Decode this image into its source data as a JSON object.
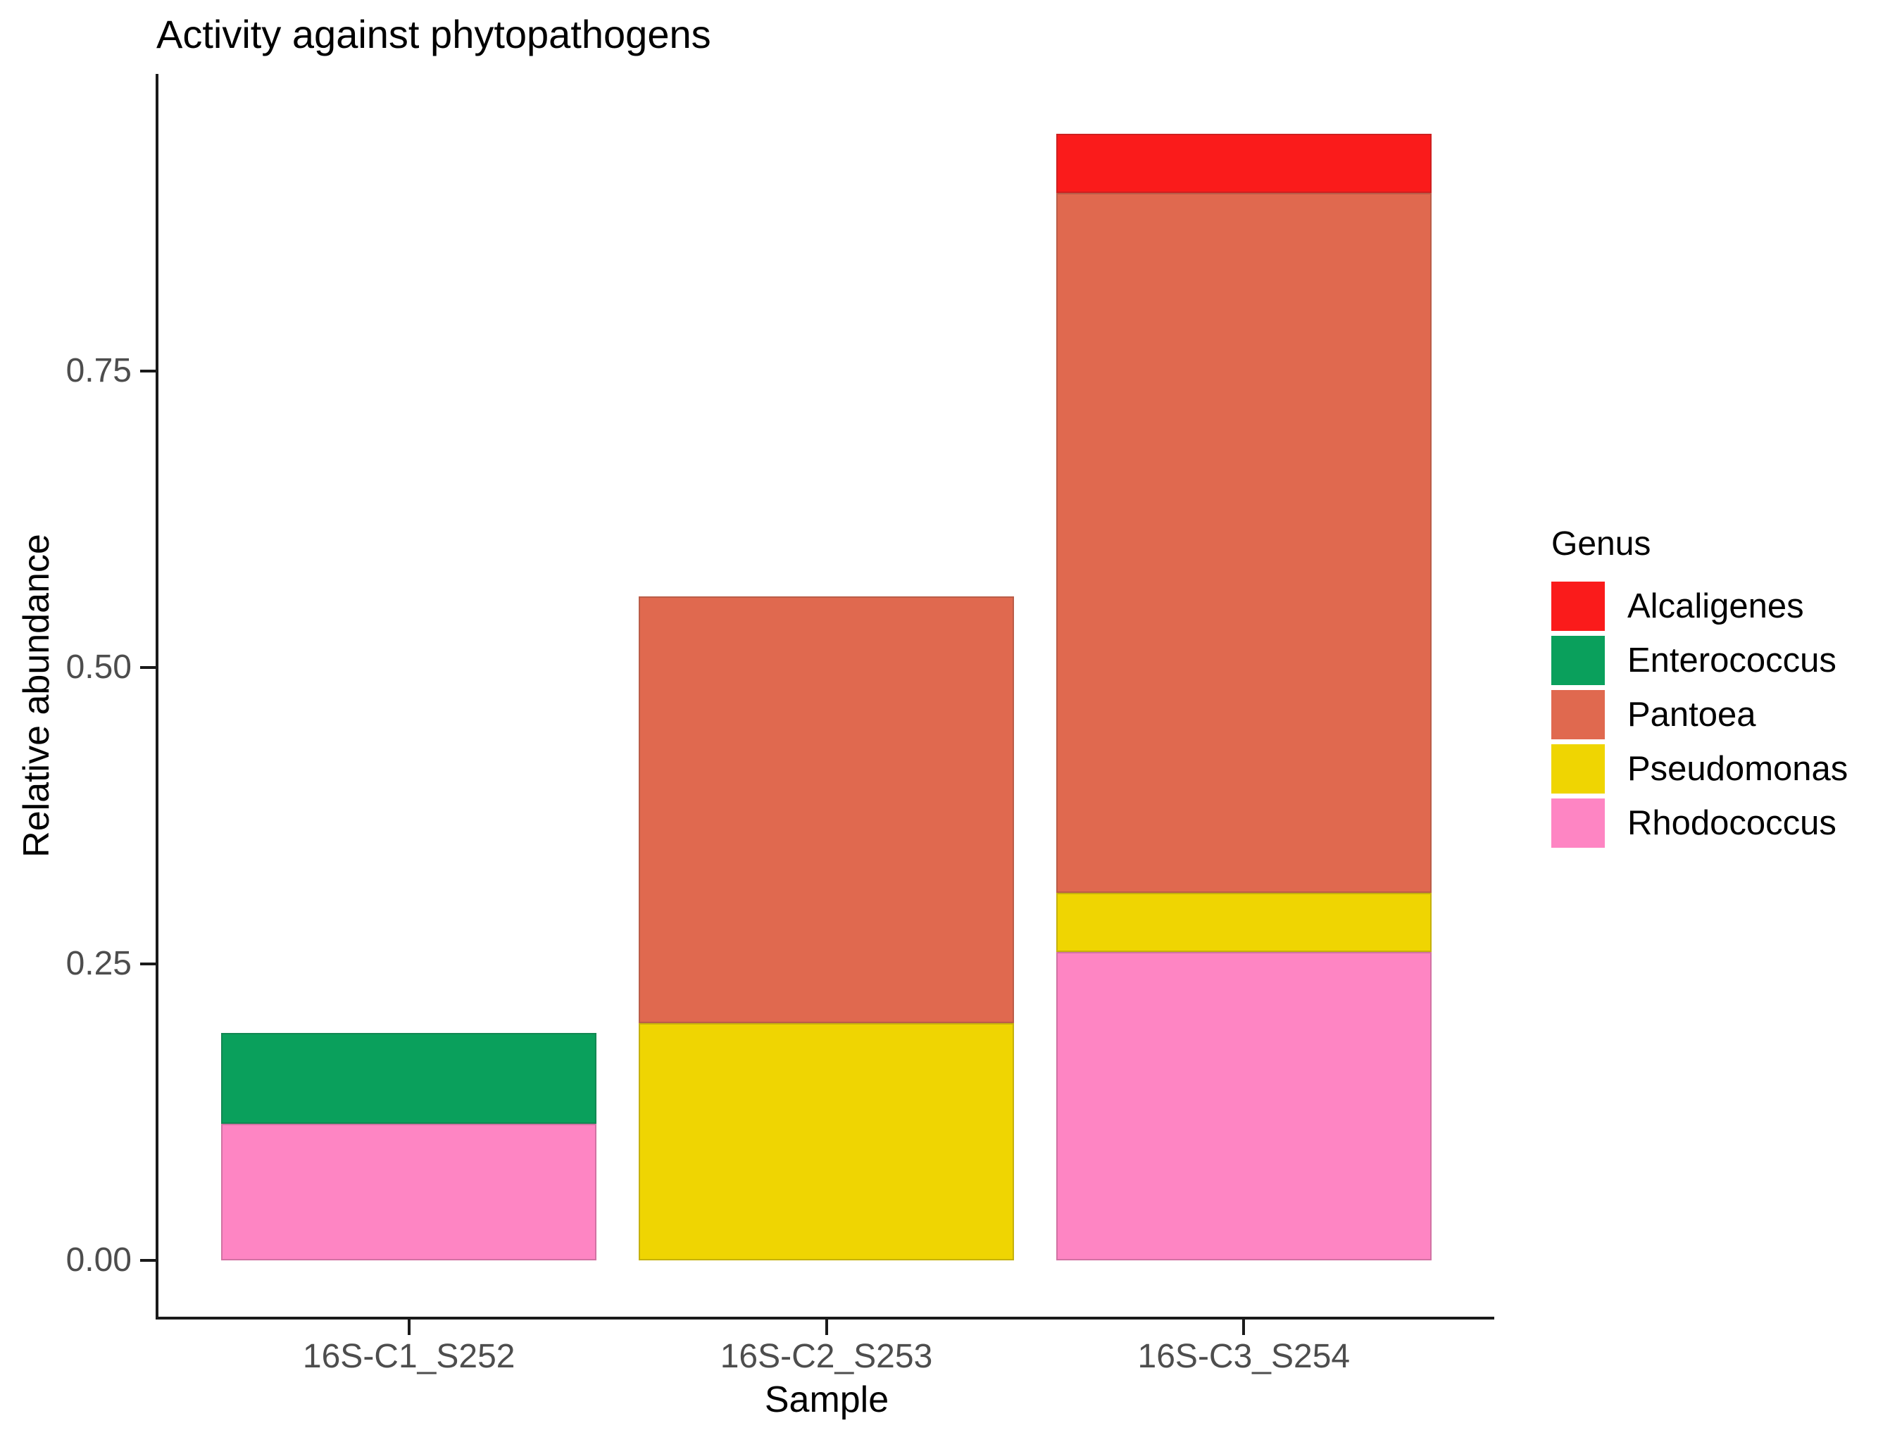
{
  "chart_data": {
    "type": "bar",
    "stacked": true,
    "title": "Activity against phytopathogens",
    "xlabel": "Sample",
    "ylabel": "Relative abundance",
    "legend_title": "Genus",
    "legend_position": "right",
    "grid": false,
    "categories": [
      "16S-C1_S252",
      "16S-C2_S253",
      "16S-C3_S254"
    ],
    "series": [
      {
        "name": "Alcaligenes",
        "color": "#FA1B1B",
        "values": [
          0,
          0,
          0.05
        ]
      },
      {
        "name": "Enterococcus",
        "color": "#0AA05C",
        "values": [
          0.077,
          0,
          0
        ]
      },
      {
        "name": "Pantoea",
        "color": "#E0694F",
        "values": [
          0,
          0.36,
          0.59
        ]
      },
      {
        "name": "Pseudomonas",
        "color": "#EFD502",
        "values": [
          0,
          0.2,
          0.05
        ]
      },
      {
        "name": "Rhodococcus",
        "color": "#FE85C3",
        "values": [
          0.115,
          0,
          0.26
        ]
      }
    ],
    "bar_totals": [
      0.192,
      0.56,
      0.95
    ],
    "y_ticks": [
      "0.00",
      "0.25",
      "0.50",
      "0.75"
    ],
    "ylim": [
      0,
      0.95
    ],
    "stack_order_bottom_to_top": [
      "Rhodococcus",
      "Pseudomonas",
      "Pantoea",
      "Enterococcus",
      "Alcaligenes"
    ]
  }
}
